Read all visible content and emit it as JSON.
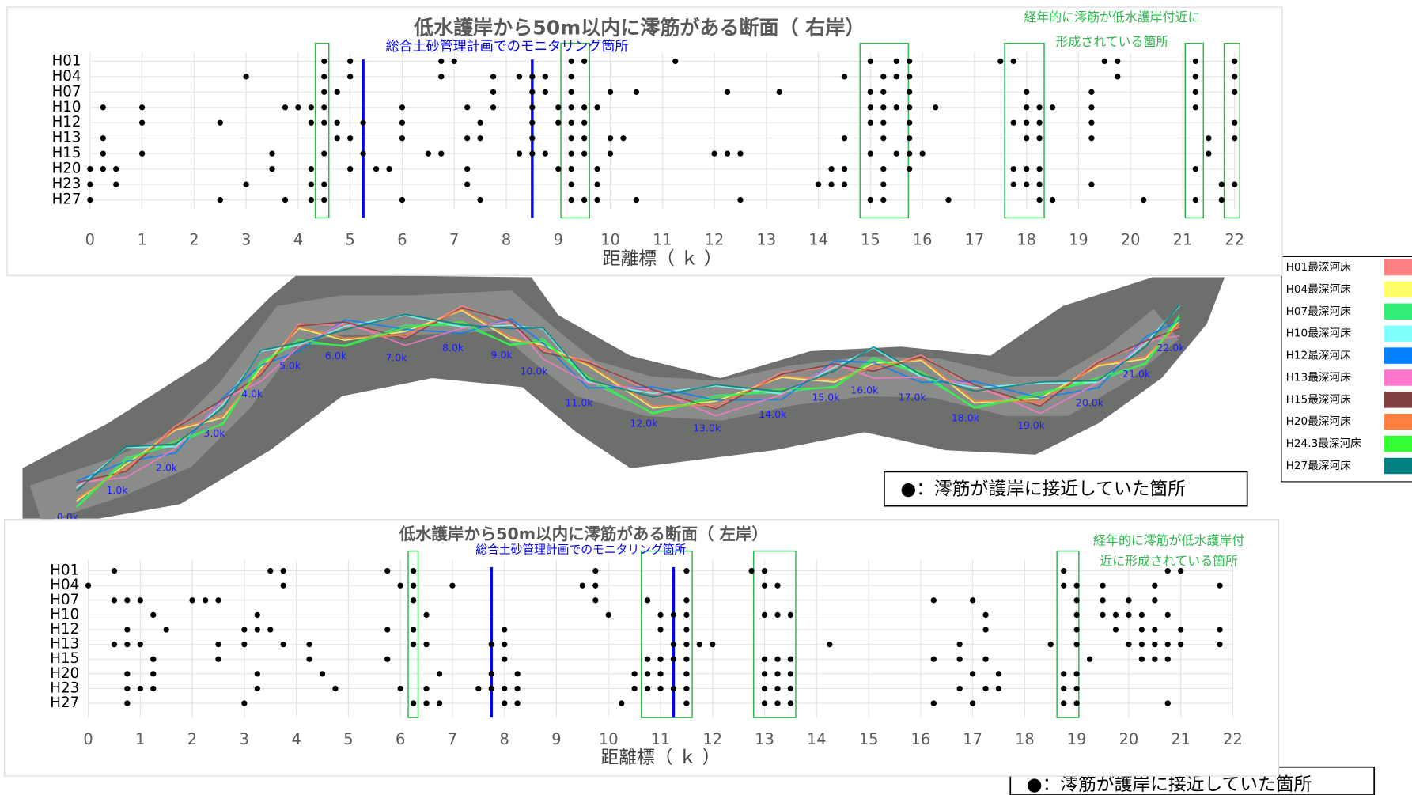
{
  "chart_data": [
    {
      "type": "scatter",
      "title": "低水護岸から50m以内に澪筋がある断面（ 右岸）",
      "annotation": "総合土砂管理計画でのモニタリング箇所",
      "note_lines": [
        "経年的に澪筋が低水護岸付近に",
        "形成されている箇所"
      ],
      "xlabel": "距離標（ ｋ ）",
      "xlim": [
        0,
        22
      ],
      "xticks": [
        0,
        1,
        2,
        3,
        4,
        5,
        6,
        7,
        8,
        9,
        10,
        11,
        12,
        13,
        14,
        15,
        16,
        17,
        18,
        19,
        20,
        21,
        22
      ],
      "grid": true,
      "color": "#000000",
      "monitoring_color": "#0000ff",
      "highlight_color": "#2db84d",
      "monitoring_lines": [
        5.25,
        8.5
      ],
      "highlight_ranges": [
        [
          4.33,
          4.59
        ],
        [
          9.05,
          9.6
        ],
        [
          14.8,
          15.73
        ],
        [
          17.58,
          18.34
        ],
        [
          21.05,
          21.4
        ],
        [
          21.8,
          22.1
        ]
      ],
      "series": [
        {
          "name": "H01",
          "values": [
            4.5,
            5.0,
            6.75,
            7.0,
            9.25,
            9.5,
            11.25,
            15.0,
            15.5,
            15.75,
            17.5,
            17.75,
            19.5,
            19.75,
            21.25,
            22.0
          ]
        },
        {
          "name": "H04",
          "values": [
            3.0,
            4.5,
            5.0,
            6.75,
            7.75,
            8.25,
            8.5,
            8.75,
            9.25,
            14.5,
            15.25,
            15.5,
            15.75,
            19.75,
            21.25,
            22.0
          ]
        },
        {
          "name": "H07",
          "values": [
            4.5,
            4.75,
            7.75,
            8.5,
            8.75,
            9.25,
            10.0,
            10.5,
            12.25,
            13.25,
            15.0,
            15.25,
            15.75,
            18.0,
            19.25,
            21.25,
            22.0
          ]
        },
        {
          "name": "H10",
          "values": [
            0.25,
            1.0,
            3.75,
            4.0,
            4.25,
            4.5,
            6.0,
            7.25,
            7.75,
            8.5,
            9.0,
            9.25,
            9.5,
            9.75,
            15.0,
            15.25,
            15.5,
            15.75,
            16.25,
            18.0,
            18.25,
            18.5,
            19.25,
            21.25
          ]
        },
        {
          "name": "H12",
          "values": [
            1.0,
            2.5,
            4.25,
            4.5,
            4.75,
            5.25,
            6.0,
            7.5,
            8.5,
            9.0,
            9.25,
            9.5,
            15.0,
            15.25,
            15.75,
            17.75,
            18.0,
            18.25,
            19.25,
            22.0
          ]
        },
        {
          "name": "H13",
          "values": [
            0.25,
            4.75,
            5.0,
            6.0,
            7.25,
            7.5,
            8.5,
            9.25,
            9.5,
            10.0,
            10.25,
            14.5,
            15.25,
            15.75,
            18.0,
            18.25,
            19.25,
            21.5,
            22.0
          ]
        },
        {
          "name": "H15",
          "values": [
            0.25,
            1.0,
            3.5,
            4.5,
            5.25,
            6.5,
            6.75,
            8.25,
            8.5,
            8.75,
            9.25,
            9.5,
            10.0,
            12.0,
            12.25,
            12.5,
            15.0,
            15.5,
            15.75,
            16.0,
            21.5
          ]
        },
        {
          "name": "H20",
          "values": [
            0,
            0.25,
            0.5,
            3.5,
            4.25,
            5.0,
            5.5,
            5.75,
            7.25,
            9.0,
            9.25,
            9.75,
            14.25,
            14.5,
            15.25,
            15.75,
            17.75,
            18.0,
            18.25,
            21.25
          ]
        },
        {
          "name": "H23",
          "values": [
            0,
            0.5,
            3.0,
            4.25,
            4.5,
            7.25,
            9.25,
            9.75,
            14.0,
            14.25,
            14.5,
            15.25,
            17.75,
            18.0,
            18.25,
            19.25,
            21.75,
            22.0
          ]
        },
        {
          "name": "H27",
          "values": [
            0,
            2.5,
            3.75,
            4.25,
            4.5,
            6.0,
            7.5,
            9.25,
            9.5,
            9.75,
            10.5,
            12.5,
            15.0,
            15.25,
            16.5,
            18.25,
            18.5,
            20.25,
            21.25,
            21.75
          ]
        }
      ]
    },
    {
      "type": "scatter",
      "title": "低水護岸から50m以内に澪筋がある断面（ 左岸）",
      "annotation": "総合土砂管理計画でのモニタリング箇所",
      "note_lines": [
        "経年的に澪筋が低水護岸付",
        "近に形成されている箇所"
      ],
      "xlabel": "距離標（ ｋ ）",
      "xlim": [
        0,
        22
      ],
      "xticks": [
        0,
        1,
        2,
        3,
        4,
        5,
        6,
        7,
        8,
        9,
        10,
        11,
        12,
        13,
        14,
        15,
        16,
        17,
        18,
        19,
        20,
        21,
        22
      ],
      "grid": true,
      "color": "#000000",
      "monitoring_color": "#0000ff",
      "highlight_color": "#2db84d",
      "monitoring_lines": [
        7.75,
        11.25
      ],
      "highlight_ranges": [
        [
          6.15,
          6.34
        ],
        [
          10.63,
          11.61
        ],
        [
          12.79,
          13.6
        ],
        [
          18.62,
          19.04
        ]
      ],
      "series": [
        {
          "name": "H01",
          "values": [
            0.5,
            3.5,
            3.75,
            5.75,
            6.25,
            9.75,
            11.5,
            12.75,
            13.0,
            18.75,
            20.75,
            21.0
          ]
        },
        {
          "name": "H04",
          "values": [
            0,
            3.75,
            6.0,
            6.25,
            7.0,
            9.5,
            9.75,
            13.0,
            13.25,
            18.75,
            19.0,
            19.5,
            20.5,
            21.75
          ]
        },
        {
          "name": "H07",
          "values": [
            0.5,
            0.75,
            1.0,
            2.0,
            2.25,
            2.5,
            6.25,
            9.75,
            10.75,
            11.5,
            16.25,
            17.0,
            19.0,
            19.5,
            20.0,
            20.5
          ]
        },
        {
          "name": "H10",
          "values": [
            1.25,
            3.25,
            6.5,
            10.0,
            11.0,
            11.25,
            11.5,
            13.0,
            13.25,
            13.5,
            17.25,
            19.0,
            19.5,
            19.75,
            20.0,
            20.25,
            20.75
          ]
        },
        {
          "name": "H12",
          "values": [
            0.75,
            1.5,
            3.0,
            3.25,
            3.5,
            5.75,
            6.25,
            8.0,
            11.0,
            11.5,
            17.25,
            19.0,
            19.75,
            20.25,
            20.5,
            21.0,
            21.75
          ]
        },
        {
          "name": "H13",
          "values": [
            0.5,
            0.75,
            1.0,
            2.5,
            3.0,
            3.75,
            4.25,
            6.25,
            6.5,
            7.75,
            8.0,
            11.25,
            11.5,
            11.75,
            12.0,
            14.25,
            16.75,
            18.5,
            19.0,
            20.0,
            20.25,
            20.5,
            20.75,
            21.0,
            21.75
          ]
        },
        {
          "name": "H15",
          "values": [
            1.25,
            2.5,
            4.25,
            5.75,
            8.0,
            10.75,
            11.0,
            11.25,
            11.5,
            13.0,
            13.25,
            13.5,
            16.25,
            16.75,
            17.25,
            19.25,
            20.25,
            20.5,
            20.75
          ]
        },
        {
          "name": "H20",
          "values": [
            0.75,
            1.25,
            3.25,
            4.5,
            6.75,
            7.75,
            8.25,
            10.5,
            10.75,
            11.0,
            11.5,
            13.0,
            13.25,
            13.5,
            17.0,
            17.5,
            18.75,
            19.0
          ]
        },
        {
          "name": "H23",
          "values": [
            0.75,
            1.0,
            1.25,
            3.25,
            4.75,
            6.0,
            6.5,
            7.5,
            7.75,
            8.0,
            8.25,
            10.5,
            10.75,
            11.0,
            11.25,
            11.5,
            13.0,
            13.25,
            13.5,
            16.75,
            17.25,
            17.5,
            18.75,
            19.0
          ]
        },
        {
          "name": "H27",
          "values": [
            0.75,
            3.0,
            6.25,
            6.5,
            6.75,
            8.0,
            8.25,
            10.25,
            11.5,
            13.0,
            13.25,
            13.5,
            16.25,
            17.0,
            18.75,
            19.0,
            20.75
          ]
        }
      ]
    }
  ],
  "map": {
    "km_labels": [
      "0.0k",
      "1.0k",
      "2.0k",
      "3.0k",
      "4.0k",
      "5.0k",
      "6.0k",
      "7.0k",
      "8.0k",
      "9.0k",
      "10.0k",
      "11.0k",
      "12.0k",
      "13.0k",
      "14.0k",
      "15.0k",
      "16.0k",
      "17.0k",
      "18.0k",
      "19.0k",
      "20.0k",
      "21.0k",
      "22.0k"
    ],
    "legend": [
      {
        "name": "H01最深河床",
        "color": "#ff8080"
      },
      {
        "name": "H04最深河床",
        "color": "#ffff66"
      },
      {
        "name": "H07最深河床",
        "color": "#33ee77"
      },
      {
        "name": "H10最深河床",
        "color": "#80ffff"
      },
      {
        "name": "H12最深河床",
        "color": "#0080ff"
      },
      {
        "name": "H13最深河床",
        "color": "#ff77cc"
      },
      {
        "name": "H15最深河床",
        "color": "#804040"
      },
      {
        "name": "H20最深河床",
        "color": "#ff8040"
      },
      {
        "name": "H24.3最深河床",
        "color": "#33ff33"
      },
      {
        "name": "H27最深河床",
        "color": "#008080"
      }
    ]
  },
  "notes": [
    "●：澪筋が護岸に接近していた箇所",
    "●：澪筋が護岸に接近していた箇所"
  ]
}
